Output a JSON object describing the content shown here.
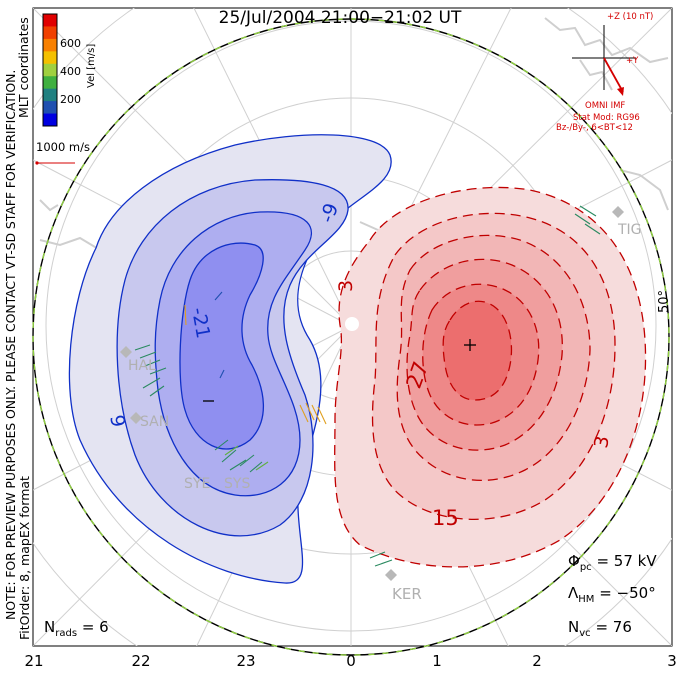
{
  "title": "25/Jul/2004 21:00−21:02 UT",
  "colorbar": {
    "label": "Vel [m/s]",
    "ticks": [
      "600",
      "400",
      "200"
    ],
    "colors": [
      "#e00000",
      "#f04000",
      "#f88000",
      "#f4c000",
      "#a0d040",
      "#40b040",
      "#208080",
      "#2050b0",
      "#0000e0"
    ]
  },
  "side_text": {
    "line1": "NOTE: FOR PREVIEW PURPOSES ONLY. PLEASE CONTACT VT-SD STAFF FOR VERIFICATION.",
    "line2": "FitOrder: 8, mapEX format",
    "mlt_label": "MLT coordinates"
  },
  "vector_scale": "1000 m/s",
  "imf": {
    "z_label": "+Z (10 nT)",
    "y_label": "+Y",
    "omni": "OMNI IMF",
    "stat_mod": "Stat Mod: RG96",
    "cond": "Bz-/By-, 6<BT<12"
  },
  "latitude_label": "50°",
  "contours": {
    "negative": [
      "-9",
      "-21",
      "9",
      "−"
    ],
    "positive": [
      "3",
      "27",
      "15",
      "3"
    ]
  },
  "radars": [
    "HAL",
    "SAN",
    "SYE",
    "SYS",
    "KER",
    "JTG",
    "TIG"
  ],
  "stats": {
    "phi_pc": "Φ",
    "phi_sub": "pc",
    "phi_val": "=  57 kV",
    "lambda": "Λ",
    "lambda_sub": "HM",
    "lambda_val": "=  −50°",
    "nvc": "N",
    "nvc_sub": "vc",
    "nvc_val": "=  76",
    "nrads": "N",
    "nrads_sub": "rads",
    "nrads_val": "=  6"
  },
  "mlt_ticks": [
    "21",
    "22",
    "23",
    "0",
    "1",
    "2",
    "3"
  ]
}
